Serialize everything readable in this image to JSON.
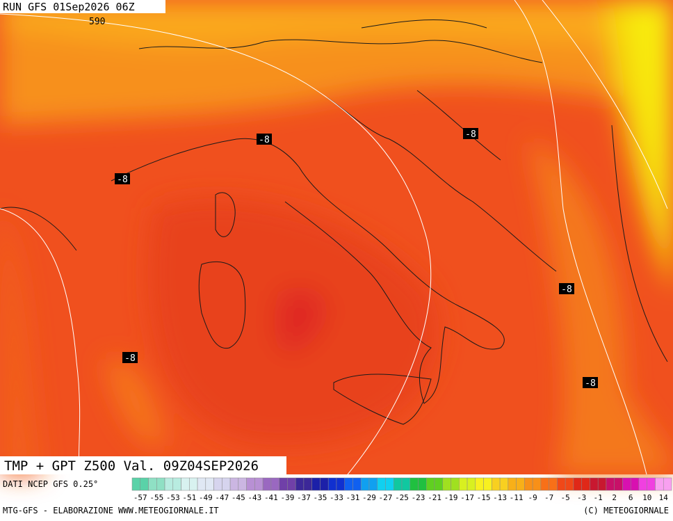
{
  "header": {
    "run": "RUN GFS 01Sep2026 06Z"
  },
  "map": {
    "isoline_label": "590",
    "contour_labels": [
      "-8",
      "-8",
      "-8",
      "-8",
      "-8",
      "-8"
    ]
  },
  "footer": {
    "product": "TMP + GPT Z500 Val. 09Z04SEP2026",
    "source": "DATI NCEP GFS 0.25°",
    "credit_left": "MTG-GFS - ELABORAZIONE WWW.METEOGIORNALE.IT",
    "credit_right": "(C) METEOGIORNALE"
  },
  "colorbar": {
    "labels": [
      -57,
      -55,
      -53,
      -51,
      -49,
      -47,
      -45,
      -43,
      -41,
      -39,
      -37,
      -35,
      -33,
      -31,
      -29,
      -27,
      -25,
      -23,
      -21,
      -19,
      -17,
      -15,
      -13,
      -11,
      -9,
      -7,
      -5,
      -3,
      -1,
      2,
      6,
      10,
      14
    ],
    "colors": [
      "#5ad2a8",
      "#8fe0c4",
      "#b8ece0",
      "#d8f2f0",
      "#e0e8f4",
      "#d6d4ee",
      "#cbb6e2",
      "#b890d4",
      "#9a68c0",
      "#7040a8",
      "#3c2898",
      "#1c20a8",
      "#1030d0",
      "#1060f0",
      "#10a0f0",
      "#10d0f0",
      "#10c8a0",
      "#20c040",
      "#60d020",
      "#a0e020",
      "#d8f020",
      "#f8f020",
      "#f8d020",
      "#f8b018",
      "#f89018",
      "#f87018",
      "#f04818",
      "#e02818",
      "#c81830",
      "#c81068",
      "#d810b0",
      "#f040e0",
      "#f8a0f0"
    ]
  }
}
